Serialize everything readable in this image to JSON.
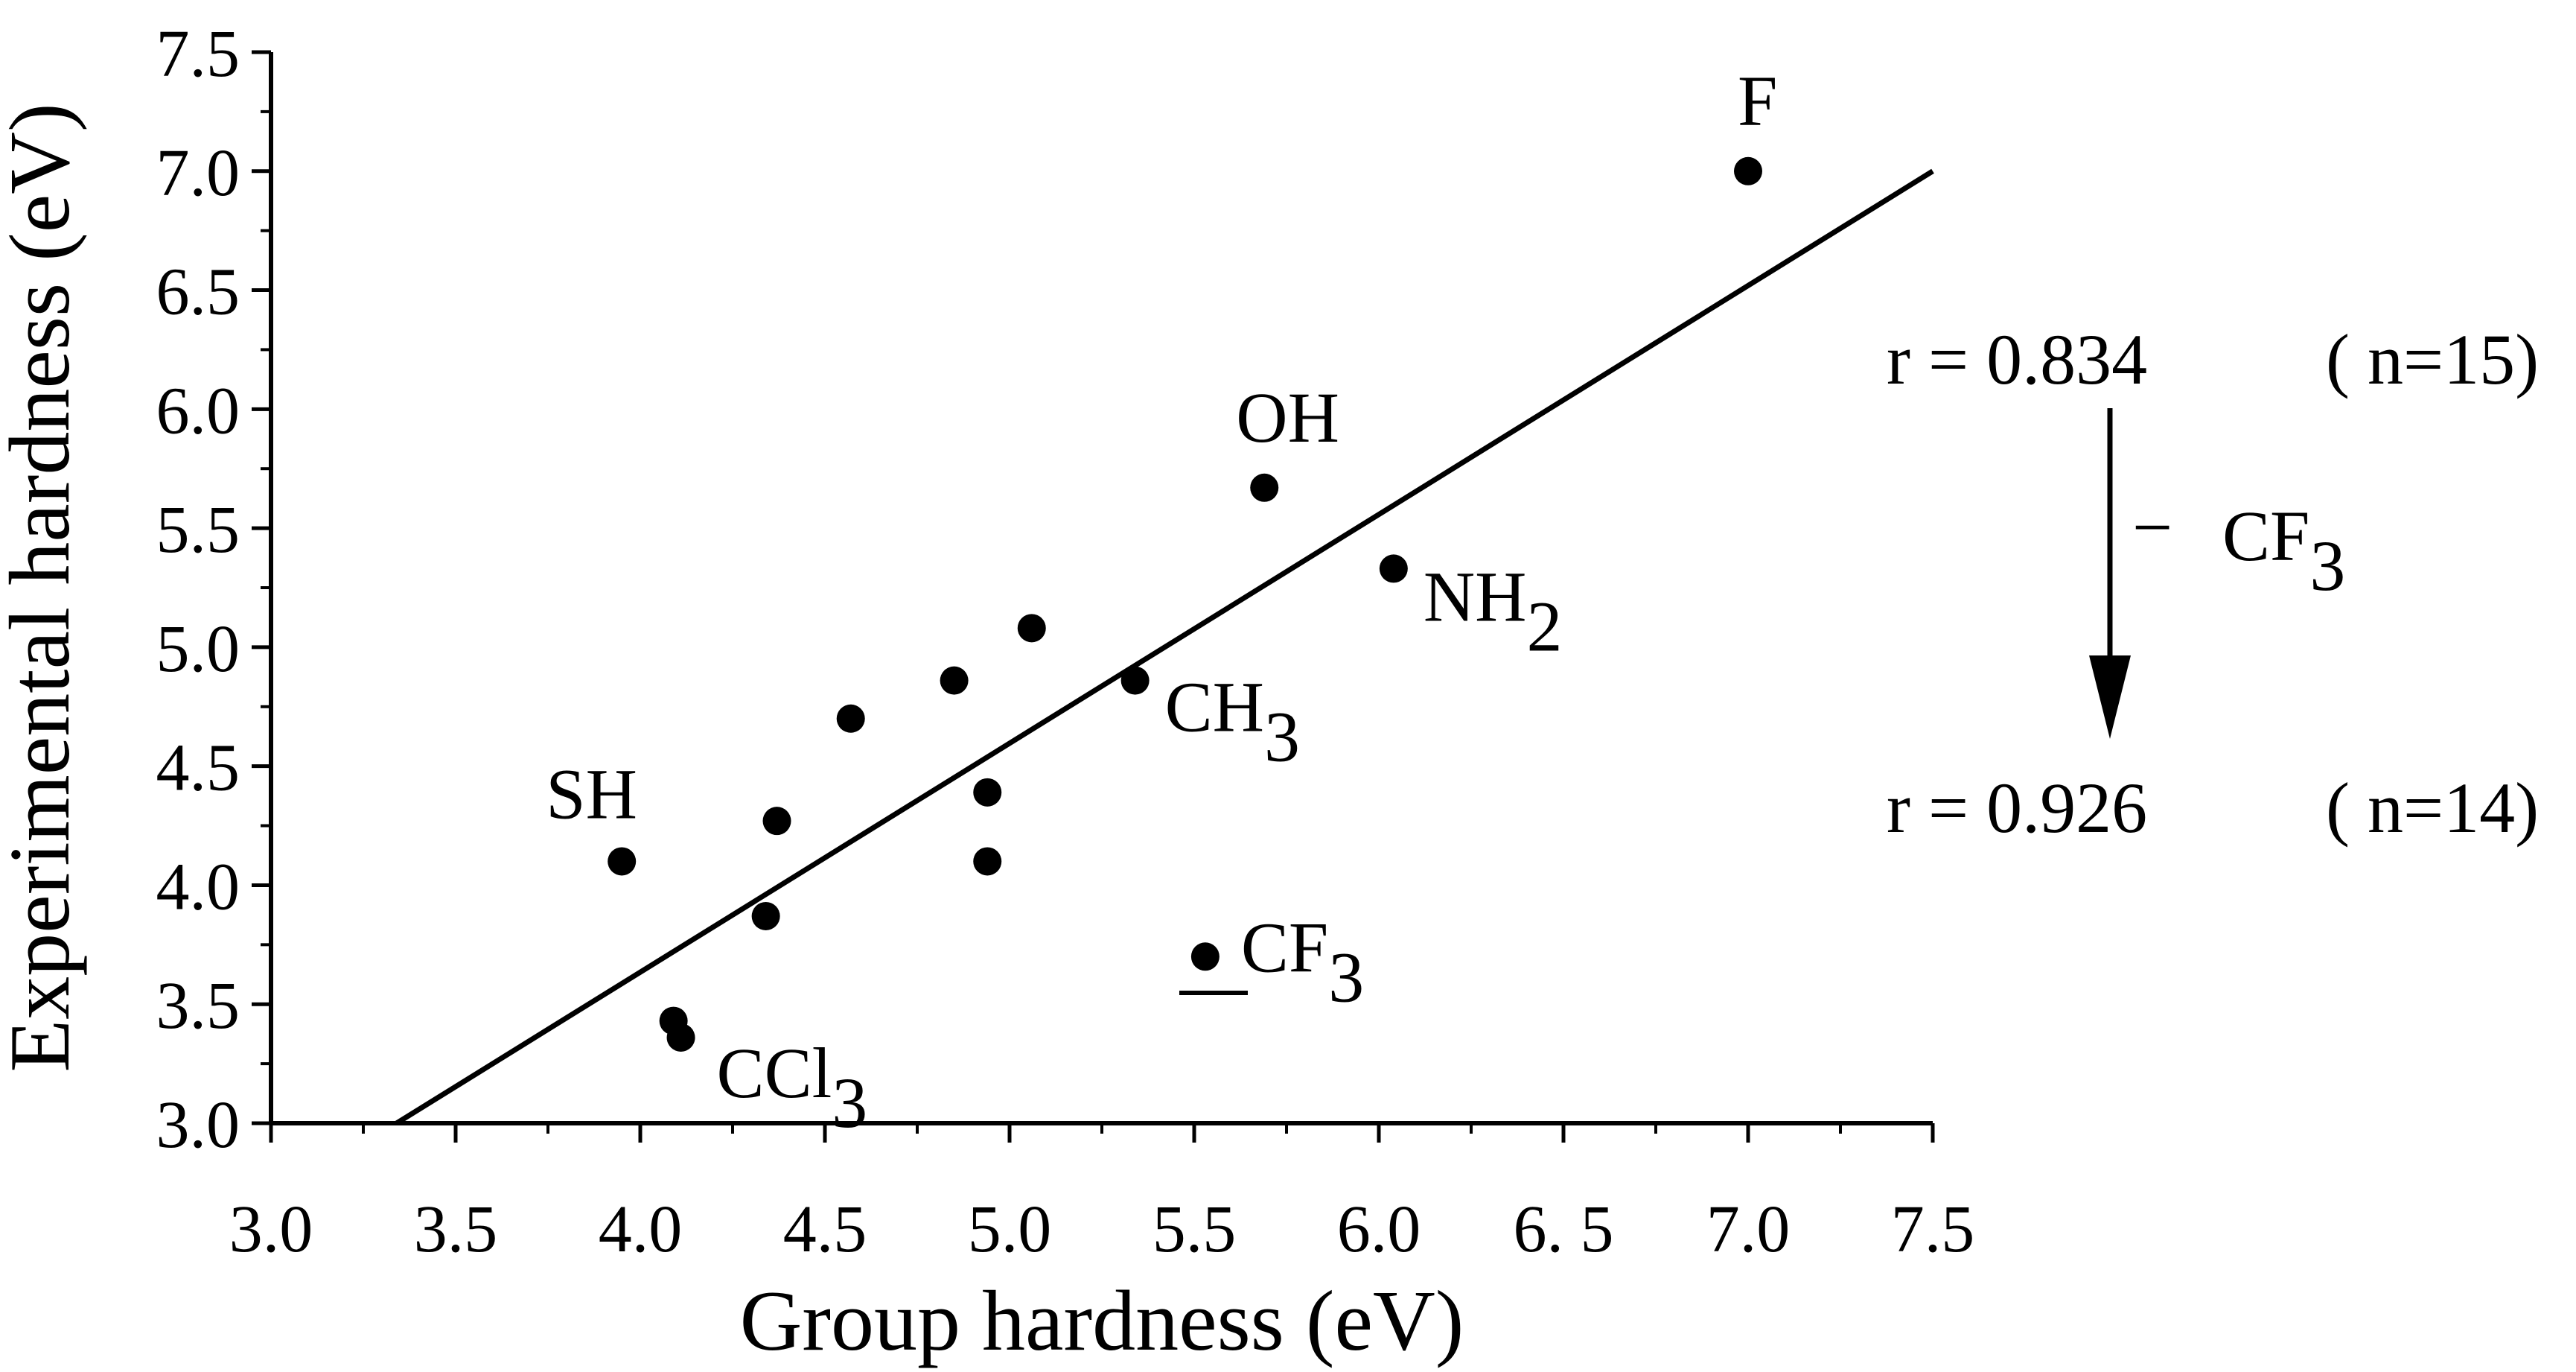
{
  "chart_data": {
    "type": "scatter",
    "title": "",
    "xlabel": "Group hardness (eV)",
    "ylabel": "Experimental hardness (eV)",
    "xlim": [
      3.0,
      7.5
    ],
    "ylim": [
      3.0,
      7.5
    ],
    "x_ticks": [
      3.0,
      3.5,
      4.0,
      4.5,
      5.0,
      5.5,
      6.0,
      6.5,
      7.0,
      7.5
    ],
    "x_tick_labels": [
      "3.0",
      "3.5",
      "4.0",
      "4.5",
      "5.0",
      "5.5",
      "6.0",
      "6. 5",
      "7.0",
      "7.5"
    ],
    "y_ticks": [
      3.0,
      3.5,
      4.0,
      4.5,
      5.0,
      5.5,
      6.0,
      6.5,
      7.0,
      7.5
    ],
    "y_tick_labels": [
      "3.0",
      "3.5",
      "4.0",
      "4.5",
      "5.0",
      "5.5",
      "6.0",
      "6.5",
      "7.0",
      "7.5"
    ],
    "grid": false,
    "points": [
      {
        "x": 7.0,
        "y": 7.0,
        "label": "F",
        "sub": ""
      },
      {
        "x": 5.69,
        "y": 5.67,
        "label": "OH",
        "sub": ""
      },
      {
        "x": 6.04,
        "y": 5.33,
        "label": "NH",
        "sub": "2"
      },
      {
        "x": 5.34,
        "y": 4.86,
        "label": "CH",
        "sub": "3"
      },
      {
        "x": 5.53,
        "y": 3.7,
        "label": "CF",
        "sub": "3"
      },
      {
        "x": 3.95,
        "y": 4.1,
        "label": "SH",
        "sub": ""
      },
      {
        "x": 4.11,
        "y": 3.36,
        "label": "CCl",
        "sub": "3"
      },
      {
        "x": 4.09,
        "y": 3.43,
        "label": "",
        "sub": ""
      },
      {
        "x": 4.34,
        "y": 3.87,
        "label": "",
        "sub": ""
      },
      {
        "x": 4.37,
        "y": 4.27,
        "label": "",
        "sub": ""
      },
      {
        "x": 4.57,
        "y": 4.7,
        "label": "",
        "sub": ""
      },
      {
        "x": 4.85,
        "y": 4.86,
        "label": "",
        "sub": ""
      },
      {
        "x": 5.06,
        "y": 5.08,
        "label": "",
        "sub": ""
      },
      {
        "x": 4.94,
        "y": 4.39,
        "label": "",
        "sub": ""
      },
      {
        "x": 4.94,
        "y": 4.1,
        "label": "",
        "sub": ""
      }
    ],
    "fit_line": {
      "x": [
        3.34,
        7.5
      ],
      "y": [
        3.0,
        7.0
      ]
    },
    "annotations": {
      "r_before": "r = 0.834",
      "n_before": "( n=15)",
      "removed_prefix": "−",
      "removed_base": "CF",
      "removed_sub": "3",
      "r_after": "r = 0.926",
      "n_after": "( n=14)"
    }
  }
}
